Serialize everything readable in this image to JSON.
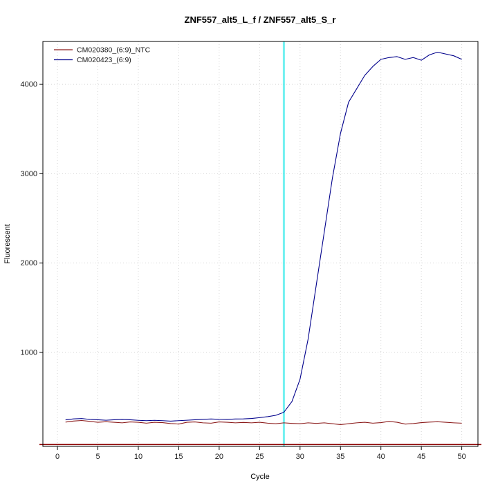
{
  "chart_data": {
    "type": "line",
    "title": "ZNF557_alt5_L_f / ZNF557_alt5_S_r",
    "xlabel": "Cycle",
    "ylabel": "Fluorescent",
    "xlim": [
      -1.8,
      52
    ],
    "ylim": [
      -52,
      4480
    ],
    "xticks": [
      0,
      5,
      10,
      15,
      20,
      25,
      30,
      35,
      40,
      45,
      50
    ],
    "yticks": [
      1000,
      2000,
      3000,
      4000
    ],
    "grid": true,
    "grid_style": "dotted-lightgray",
    "legend_position": "top-left",
    "x": [
      1,
      2,
      3,
      4,
      5,
      6,
      7,
      8,
      9,
      10,
      11,
      12,
      13,
      14,
      15,
      16,
      17,
      18,
      19,
      20,
      21,
      22,
      23,
      24,
      25,
      26,
      27,
      28,
      29,
      30,
      31,
      32,
      33,
      34,
      35,
      36,
      37,
      38,
      39,
      40,
      41,
      42,
      43,
      44,
      45,
      46,
      47,
      48,
      49,
      50
    ],
    "series": [
      {
        "name": "CM020380_(6:9)_NTC",
        "color": "#8b1a1a",
        "values": [
          220,
          232,
          238,
          228,
          218,
          224,
          218,
          212,
          222,
          218,
          208,
          218,
          214,
          204,
          198,
          218,
          222,
          212,
          208,
          222,
          218,
          212,
          216,
          212,
          218,
          208,
          202,
          212,
          206,
          202,
          212,
          206,
          212,
          202,
          192,
          202,
          212,
          218,
          208,
          214,
          228,
          218,
          198,
          204,
          214,
          220,
          224,
          218,
          212,
          208
        ]
      },
      {
        "name": "CM020423_(6:9)",
        "color": "#00008b",
        "values": [
          245,
          256,
          260,
          250,
          246,
          241,
          246,
          250,
          246,
          240,
          236,
          240,
          236,
          231,
          236,
          241,
          246,
          251,
          255,
          251,
          250,
          255,
          256,
          261,
          270,
          281,
          296,
          330,
          450,
          700,
          1150,
          1750,
          2350,
          2950,
          3450,
          3800,
          3950,
          4100,
          4200,
          4280,
          4300,
          4310,
          4280,
          4300,
          4270,
          4330,
          4360,
          4340,
          4320,
          4280
        ]
      }
    ],
    "vline": {
      "x": 28,
      "color": "#00e5e5",
      "meaning": "threshold-cycle-marker"
    },
    "hline": {
      "y": 0,
      "color": "#8b0000",
      "meaning": "baseline"
    },
    "legend": {
      "items": [
        {
          "label": "CM020380_(6:9)_NTC",
          "color": "#8b1a1a"
        },
        {
          "label": "CM020423_(6:9)",
          "color": "#00008b"
        }
      ]
    }
  }
}
